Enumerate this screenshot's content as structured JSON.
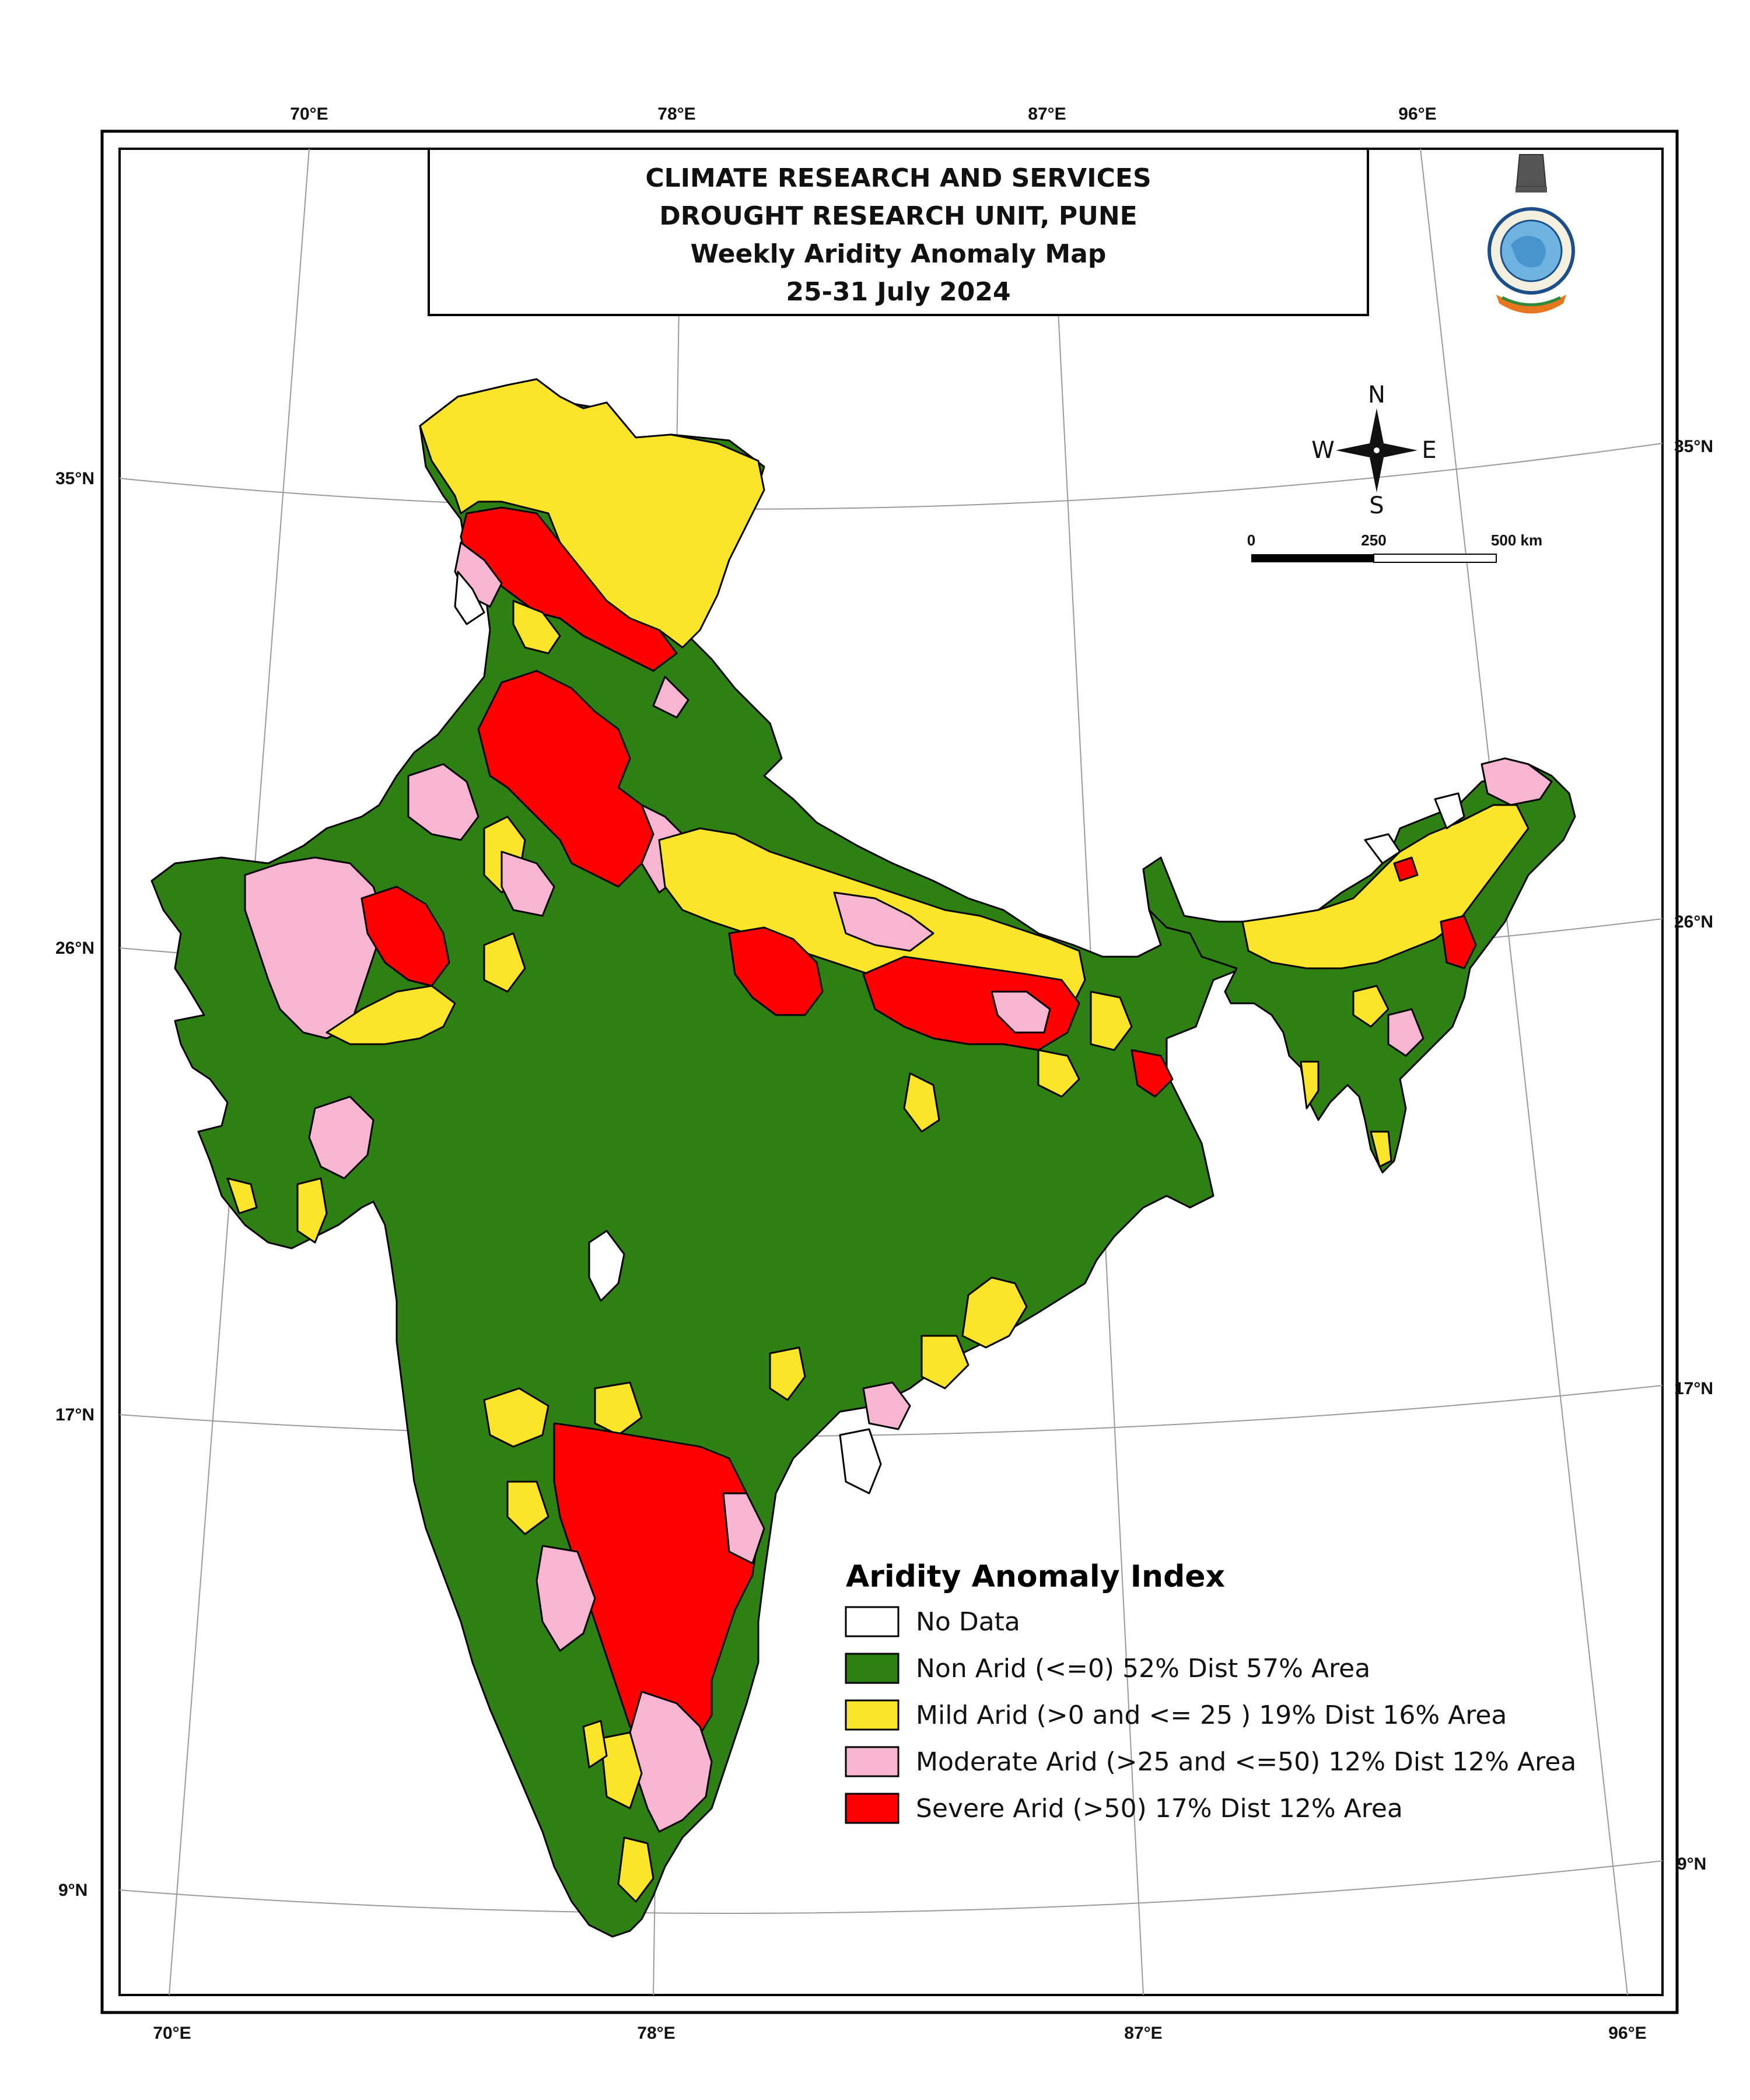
{
  "title": {
    "lines": [
      "CLIMATE RESEARCH AND SERVICES",
      "DROUGHT RESEARCH UNIT, PUNE",
      "Weekly Aridity Anomaly Map",
      "25-31 July 2024"
    ]
  },
  "graticule": {
    "top_lon": [
      "70°E",
      "78°E",
      "87°E",
      "96°E"
    ],
    "bottom_lon": [
      "70°E",
      "78°E",
      "87°E",
      "96°E"
    ],
    "left_lat": [
      "35°N",
      "26°N",
      "17°N",
      "9°N"
    ],
    "right_lat": [
      "35°N",
      "26°N",
      "17°N",
      "9°N"
    ]
  },
  "compass": {
    "n": "N",
    "s": "S",
    "e": "E",
    "w": "W"
  },
  "scale_bar": {
    "labels": [
      "0",
      "250",
      "500 km"
    ]
  },
  "legend": {
    "title": "Aridity Anomaly Index",
    "items": [
      {
        "label": "No Data",
        "color": "#ffffff"
      },
      {
        "label": "Non Arid (<=0) 52% Dist 57% Area",
        "color": "#2e8014"
      },
      {
        "label": "Mild Arid (>0 and <= 25 )  19% Dist 16% Area",
        "color": "#fbe52b"
      },
      {
        "label": "Moderate Arid (>25 and <=50)  12% Dist 12% Area",
        "color": "#f7b5cf"
      },
      {
        "label": "Severe Arid (>50) 17% Dist 12% Area",
        "color": "#ff0000"
      }
    ]
  },
  "colors": {
    "non_arid": "#2e8014",
    "mild_arid": "#fbe52b",
    "moderate_arid": "#f7b5cf",
    "severe_arid": "#ff0000",
    "no_data": "#ffffff"
  },
  "logo": {
    "name": "imd-emblem-logo"
  }
}
